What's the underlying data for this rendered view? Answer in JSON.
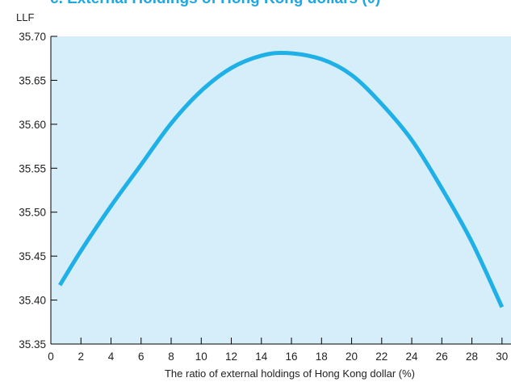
{
  "chart_data": {
    "type": "line",
    "title": "c. External Holdings of Hong Kong dollars (θ)",
    "xlabel": "The ratio of external holdings of Hong Kong dollar (%)",
    "ylabel": "LLF",
    "xlim": [
      0,
      30.6
    ],
    "ylim": [
      35.35,
      35.7
    ],
    "x_ticks": [
      "0",
      "2",
      "4",
      "6",
      "8",
      "10",
      "12",
      "14",
      "16",
      "18",
      "20",
      "22",
      "24",
      "26",
      "28",
      "30"
    ],
    "y_ticks": [
      "35.35",
      "35.40",
      "35.45",
      "35.50",
      "35.55",
      "35.60",
      "35.65",
      "35.70"
    ],
    "grid": false,
    "legend": "none",
    "colors": {
      "line": "#1fb0e8",
      "plot_background": "#d6eefa",
      "title": "#1fa7e1",
      "axis": "#000000"
    },
    "series": [
      {
        "x": [
          0.6,
          2,
          4,
          6,
          8,
          10,
          12,
          14,
          15.7,
          18,
          20,
          22,
          24,
          26,
          28,
          30
        ],
        "values": [
          35.417,
          35.456,
          35.507,
          35.554,
          35.601,
          35.638,
          35.664,
          35.678,
          35.681,
          35.674,
          35.656,
          35.623,
          35.582,
          35.527,
          35.466,
          35.392
        ]
      }
    ]
  }
}
